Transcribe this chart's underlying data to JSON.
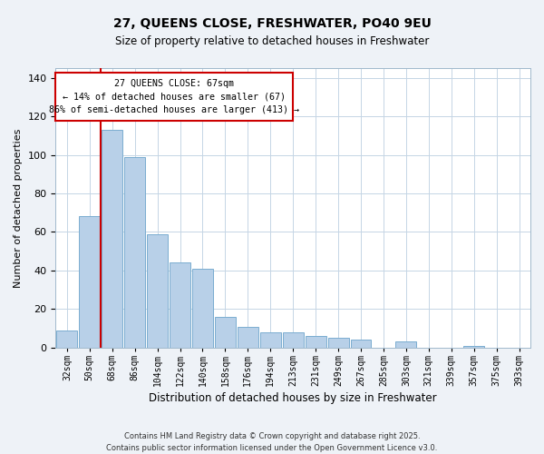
{
  "title": "27, QUEENS CLOSE, FRESHWATER, PO40 9EU",
  "subtitle": "Size of property relative to detached houses in Freshwater",
  "xlabel": "Distribution of detached houses by size in Freshwater",
  "ylabel": "Number of detached properties",
  "categories": [
    "32sqm",
    "50sqm",
    "68sqm",
    "86sqm",
    "104sqm",
    "122sqm",
    "140sqm",
    "158sqm",
    "176sqm",
    "194sqm",
    "213sqm",
    "231sqm",
    "249sqm",
    "267sqm",
    "285sqm",
    "303sqm",
    "321sqm",
    "339sqm",
    "357sqm",
    "375sqm",
    "393sqm"
  ],
  "values": [
    9,
    68,
    113,
    99,
    59,
    44,
    41,
    16,
    11,
    8,
    8,
    6,
    5,
    4,
    0,
    3,
    0,
    0,
    1,
    0,
    0
  ],
  "bar_color": "#b8d0e8",
  "bar_edge_color": "#7aadd0",
  "vline_color": "#cc0000",
  "ylim": [
    0,
    145
  ],
  "yticks": [
    0,
    20,
    40,
    60,
    80,
    100,
    120,
    140
  ],
  "annotation_line1": "27 QUEENS CLOSE: 67sqm",
  "annotation_line2": "← 14% of detached houses are smaller (67)",
  "annotation_line3": "86% of semi-detached houses are larger (413) →",
  "footer_line1": "Contains HM Land Registry data © Crown copyright and database right 2025.",
  "footer_line2": "Contains public sector information licensed under the Open Government Licence v3.0.",
  "background_color": "#eef2f7",
  "plot_background_color": "#ffffff",
  "grid_color": "#c5d5e5"
}
